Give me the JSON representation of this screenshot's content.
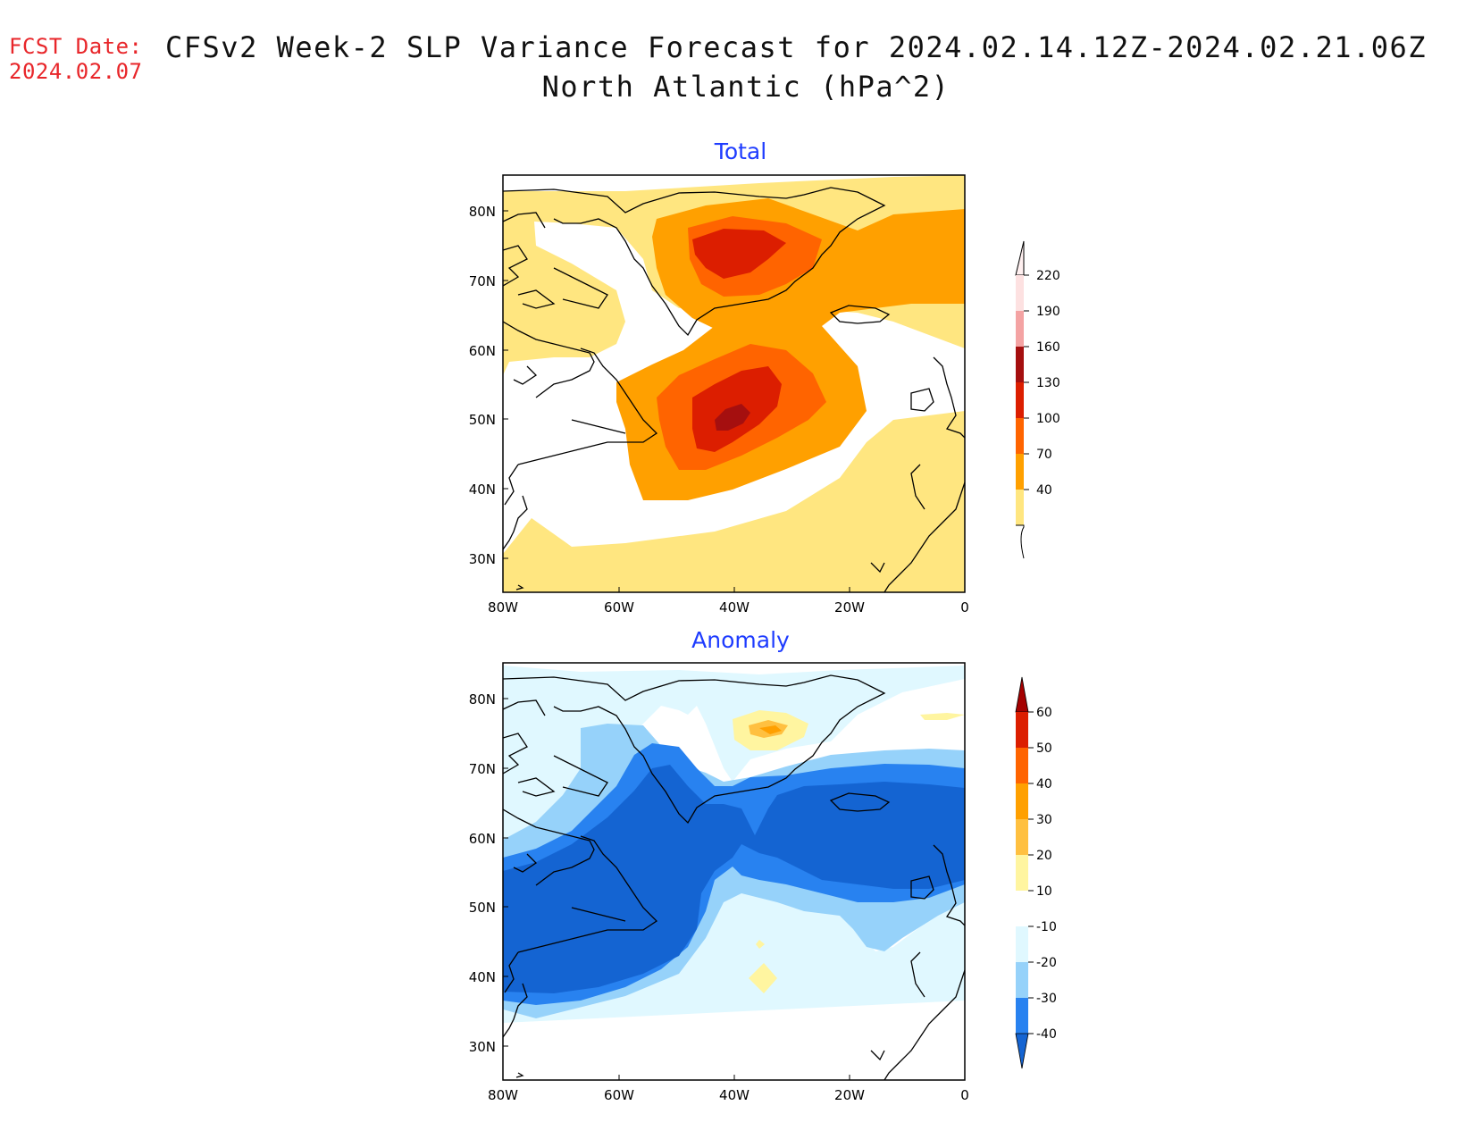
{
  "header": {
    "fcst_label": "FCST Date:",
    "fcst_date": "2024.02.07",
    "title_line1": "CFSv2 Week-2 SLP Variance Forecast for 2024.02.14.12Z-2024.02.21.06Z",
    "title_line2": "North Atlantic (hPa^2)"
  },
  "map_extent": {
    "lon": [
      -80,
      0
    ],
    "lat": [
      25,
      85
    ]
  },
  "axes": {
    "lat_ticks": [
      "80N",
      "70N",
      "60N",
      "50N",
      "40N",
      "30N"
    ],
    "lon_ticks": [
      "80W",
      "60W",
      "40W",
      "20W",
      "0"
    ]
  },
  "panels": [
    {
      "title": "Total",
      "colorbar_levels": [
        "220",
        "190",
        "160",
        "130",
        "100",
        "70",
        "40"
      ],
      "colorbar_colors": [
        "#fde1e1",
        "#f4a3a3",
        "#a50f0f",
        "#dc1e00",
        "#ff6400",
        "#ffa000",
        "#ffe680"
      ]
    },
    {
      "title": "Anomaly",
      "colorbar_levels": [
        "60",
        "50",
        "40",
        "30",
        "20",
        "10",
        "-10",
        "-20",
        "-30",
        "-40"
      ],
      "colorbar_colors": [
        "#a50000",
        "#dc1e00",
        "#ff6400",
        "#ffa000",
        "#ffc040",
        "#fff5a0",
        "#ffffff",
        "#e0f8ff",
        "#96d2fa",
        "#2882f0",
        "#1464d2"
      ]
    }
  ],
  "colors": {
    "title_blue": "#1e3cff",
    "fcst_red": "#e8262a"
  }
}
